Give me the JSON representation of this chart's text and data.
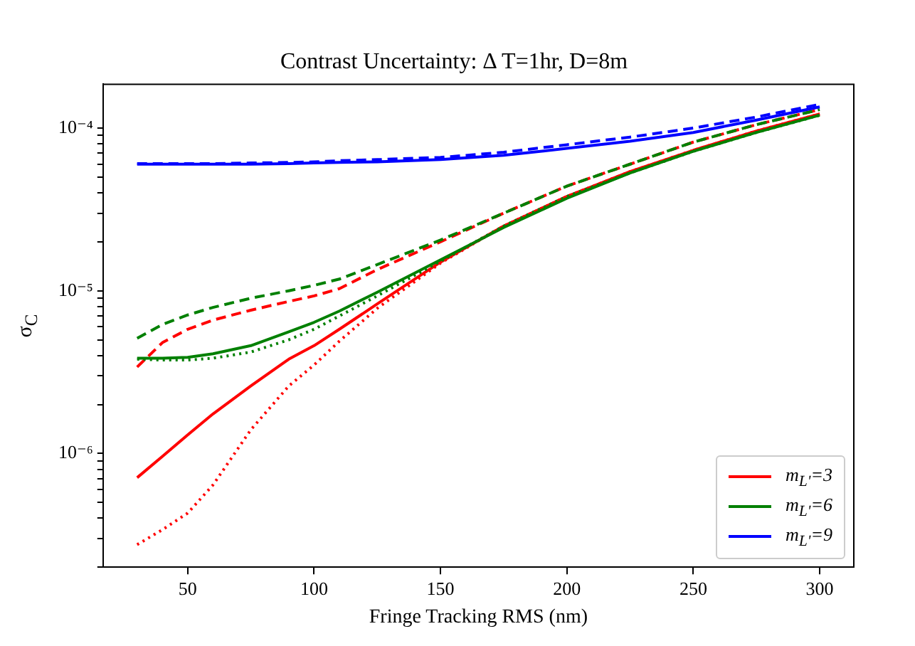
{
  "chart_data": {
    "type": "line",
    "title": "Contrast Uncertainty: Δ T=1hr, D=8m",
    "xlabel": "Fringe Tracking RMS (nm)",
    "ylabel": "σ$_{C}$",
    "log": "y",
    "legend": "bottom right",
    "x": [
      30,
      40,
      50,
      60,
      75,
      90,
      100,
      110,
      125,
      150,
      175,
      200,
      225,
      250,
      275,
      300
    ],
    "xlim": [
      16.5,
      313.5
    ],
    "xticks": [
      50,
      100,
      150,
      200,
      250,
      300
    ],
    "ylim": [
      2e-07,
      0.000186
    ],
    "yticks": [
      {
        "value": 2e-07,
        "label": null
      },
      {
        "value": 3e-07,
        "label": null
      },
      {
        "value": 4e-07,
        "label": null
      },
      {
        "value": 5e-07,
        "label": null
      },
      {
        "value": 6e-07,
        "label": null
      },
      {
        "value": 7e-07,
        "label": null
      },
      {
        "value": 8e-07,
        "label": null
      },
      {
        "value": 9e-07,
        "label": null
      },
      {
        "value": 1e-06,
        "label": "10⁻⁶"
      },
      {
        "value": 2e-06,
        "label": null
      },
      {
        "value": 3e-06,
        "label": null
      },
      {
        "value": 4e-06,
        "label": null
      },
      {
        "value": 5e-06,
        "label": null
      },
      {
        "value": 6e-06,
        "label": null
      },
      {
        "value": 7e-06,
        "label": null
      },
      {
        "value": 8e-06,
        "label": null
      },
      {
        "value": 9e-06,
        "label": null
      },
      {
        "value": 1e-05,
        "label": "10⁻⁵"
      },
      {
        "value": 2e-05,
        "label": null
      },
      {
        "value": 3e-05,
        "label": null
      },
      {
        "value": 4e-05,
        "label": null
      },
      {
        "value": 5e-05,
        "label": null
      },
      {
        "value": 6e-05,
        "label": null
      },
      {
        "value": 7e-05,
        "label": null
      },
      {
        "value": 8e-05,
        "label": null
      },
      {
        "value": 9e-05,
        "label": null
      },
      {
        "value": 0.0001,
        "label": "10⁻⁴"
      }
    ],
    "series": [
      {
        "name": "m$_{L'}$=3",
        "color": "#ff0000",
        "line_style": "solid",
        "values": [
          7.1e-07,
          9.6e-07,
          1.3e-06,
          1.75e-06,
          2.6e-06,
          3.8e-06,
          4.6e-06,
          5.8e-06,
          8.3e-06,
          1.5e-05,
          2.5e-05,
          3.8e-05,
          5.4e-05,
          7.3e-05,
          9.6e-05,
          0.000122
        ]
      },
      {
        "color": "#ff0000",
        "line_style": "dashed",
        "values": [
          3.4e-06,
          4.8e-06,
          5.8e-06,
          6.6e-06,
          7.6e-06,
          8.6e-06,
          9.3e-06,
          1.03e-05,
          1.35e-05,
          2e-05,
          3e-05,
          4.4e-05,
          6e-05,
          8.2e-05,
          0.000105,
          0.00013
        ]
      },
      {
        "color": "#ff0000",
        "line_style": "dotted",
        "values": [
          2.75e-07,
          3.4e-07,
          4.3e-07,
          6.4e-07,
          1.4e-06,
          2.6e-06,
          3.5e-06,
          4.9e-06,
          7.8e-06,
          1.48e-05,
          2.5e-05,
          3.8e-05,
          5.4e-05,
          7.3e-05,
          9.6e-05,
          0.000122
        ]
      },
      {
        "name": "m$_{L'}$=6",
        "color": "#008000",
        "line_style": "solid",
        "values": [
          3.85e-06,
          3.85e-06,
          3.9e-06,
          4.1e-06,
          4.6e-06,
          5.6e-06,
          6.4e-06,
          7.5e-06,
          9.8e-06,
          1.55e-05,
          2.45e-05,
          3.7e-05,
          5.3e-05,
          7.2e-05,
          9.4e-05,
          0.00012
        ]
      },
      {
        "color": "#008000",
        "line_style": "dashed",
        "values": [
          5.1e-06,
          6.2e-06,
          7.1e-06,
          7.9e-06,
          9e-06,
          1e-05,
          1.08e-05,
          1.18e-05,
          1.45e-05,
          2.05e-05,
          3e-05,
          4.4e-05,
          6e-05,
          8.2e-05,
          0.000105,
          0.00013
        ]
      },
      {
        "color": "#008000",
        "line_style": "dotted",
        "values": [
          3.8e-06,
          3.75e-06,
          3.75e-06,
          3.85e-06,
          4.2e-06,
          5e-06,
          5.8e-06,
          7e-06,
          9.3e-06,
          1.52e-05,
          2.5e-05,
          3.8e-05,
          5.3e-05,
          7.2e-05,
          9.4e-05,
          0.00012
        ]
      },
      {
        "name": "m$_{L'}$=9",
        "color": "#0000ff",
        "line_style": "solid",
        "values": [
          6e-05,
          6e-05,
          6e-05,
          6e-05,
          6e-05,
          6.05e-05,
          6.1e-05,
          6.15e-05,
          6.2e-05,
          6.4e-05,
          6.8e-05,
          7.5e-05,
          8.3e-05,
          9.4e-05,
          0.000112,
          0.000135
        ]
      },
      {
        "color": "#0000ff",
        "line_style": "dashed",
        "values": [
          6.05e-05,
          6.05e-05,
          6.05e-05,
          6.05e-05,
          6.1e-05,
          6.15e-05,
          6.2e-05,
          6.3e-05,
          6.4e-05,
          6.6e-05,
          7.1e-05,
          7.9e-05,
          8.8e-05,
          0.0001,
          0.000117,
          0.00014
        ]
      }
    ]
  }
}
